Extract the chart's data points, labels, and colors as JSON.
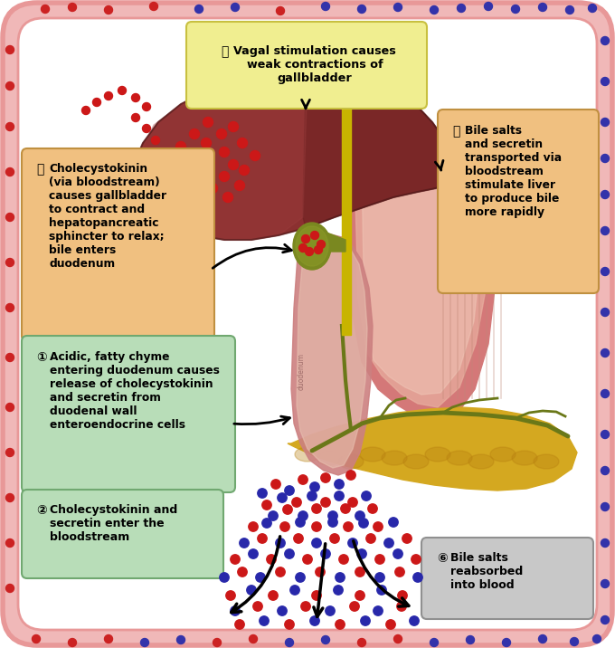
{
  "bg_outer": "#f0b8b8",
  "bg_inner": "#ffffff",
  "border_pink": "#e89898",
  "box4_color": "#f0ee90",
  "box4_edge": "#c8c040",
  "box4_text": "Vagal stimulation causes\nweak contractions of\ngallbladder",
  "box4_num": "4",
  "box3_color": "#f0c080",
  "box3_edge": "#c09040",
  "box3_text": "Bile salts\nand secretin\ntransported via\nbloodstream\nstimulate liver\nto produce bile\nmore rapidly",
  "box3_num": "3",
  "box5_color": "#f0c080",
  "box5_edge": "#c09040",
  "box5_text": "Cholecystokinin\n(via bloodstream)\ncauses gallbladder\nto contract and\nhepatopancreatic\nsphincter to relax;\nbile enters\nduodenum",
  "box5_num": "5",
  "box1_color": "#b8ddb8",
  "box1_edge": "#70a870",
  "box1_text": "Acidic, fatty chyme\nentering duodenum causes\nrelease of cholecystokinin\nand secretin from\nduodenal wall\nenteroendocrine cells",
  "box1_num": "1",
  "box2_color": "#b8ddb8",
  "box2_edge": "#70a870",
  "box2_text": "Cholecystokinin and\nsecretin enter the\nbloodstream",
  "box2_num": "2",
  "box6_color": "#c8c8c8",
  "box6_edge": "#909090",
  "box6_text": "Bile salts\nreabsorbed\ninto blood",
  "box6_num": "6",
  "liver_main": "#8b3030",
  "liver_light": "#a04040",
  "liver_dark": "#6a2020",
  "gallbladder_col": "#7a8820",
  "stomach_outer": "#d47878",
  "stomach_inner": "#e8b0a0",
  "stomach_light": "#f0c8b8",
  "duod_outer": "#cc8080",
  "duod_inner": "#e8c0b0",
  "pancreas_col": "#d4a820",
  "pancreas_tex": "#b88010",
  "bile_duct": "#c8b400",
  "green_duct": "#6a7818",
  "arrow_col": "#111111",
  "red_dot": "#cc1818",
  "blue_dot": "#2828aa",
  "border_red_dot": "#cc2222",
  "border_blue_dot": "#3333aa"
}
